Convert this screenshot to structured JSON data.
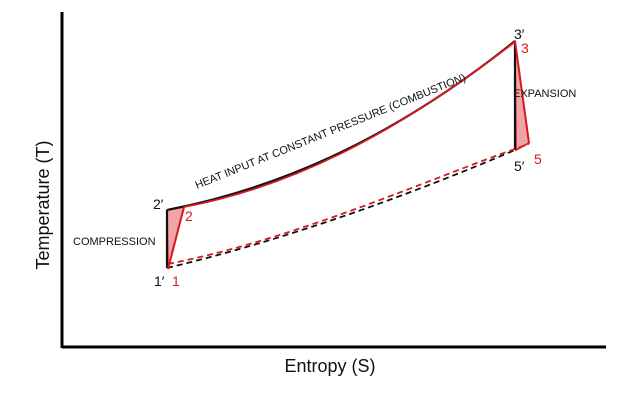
{
  "axes": {
    "x_label": "Entropy (S)",
    "y_label": "Temperature (T)"
  },
  "labels": {
    "compression": "COMPRESSION",
    "heat_input": "HEAT INPUT AT CONSTANT PRESSURE (COMBUSTION)",
    "expansion": "EXPANSION"
  },
  "points": {
    "ideal": {
      "p1": "1′",
      "p2": "2′",
      "p3": "3′",
      "p5": "5′"
    },
    "actual": {
      "p1": "1",
      "p2": "2",
      "p3": "3",
      "p5": "5"
    }
  },
  "colors": {
    "ideal": "#111111",
    "actual": "#d71920",
    "fill": "#f3a3a6"
  }
}
